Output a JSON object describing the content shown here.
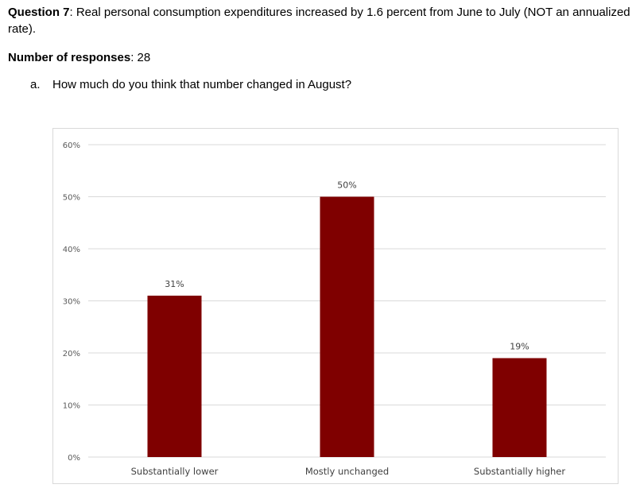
{
  "question": {
    "label": "Question 7",
    "text_line1": ": Real personal consumption expenditures increased by 1.6 percent from June to July (NOT an annualized",
    "text_line2": "rate)."
  },
  "responses": {
    "label": "Number of responses",
    "value": ": 28"
  },
  "sub_question": {
    "marker": "a.",
    "text": "How much do you think that number changed in August?"
  },
  "colors": {
    "bar": "#7f0000",
    "grid": "#d9d9d9"
  },
  "chart_data": {
    "type": "bar",
    "title": "",
    "xlabel": "",
    "ylabel": "",
    "categories": [
      "Substantially lower",
      "Mostly unchanged",
      "Substantially higher"
    ],
    "values": [
      31,
      50,
      19
    ],
    "data_labels": [
      "31%",
      "50%",
      "19%"
    ],
    "ylim": [
      0,
      60
    ],
    "yticks": [
      0,
      10,
      20,
      30,
      40,
      50,
      60
    ],
    "ytick_labels": [
      "0%",
      "10%",
      "20%",
      "30%",
      "40%",
      "50%",
      "60%"
    ],
    "grid": true,
    "legend": "none"
  }
}
